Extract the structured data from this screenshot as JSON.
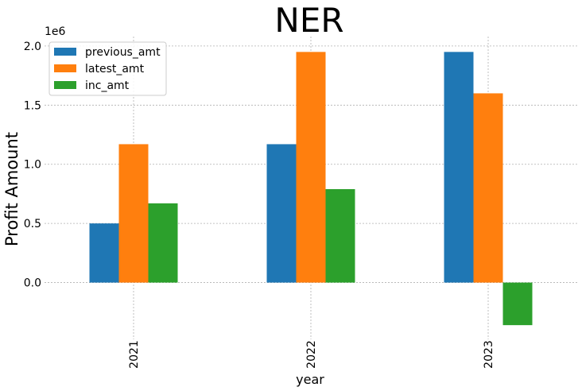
{
  "chart_data": {
    "type": "bar",
    "title": "NER",
    "xlabel": "year",
    "ylabel": "Profit Amount",
    "y_offset_label": "1e6",
    "categories": [
      "2021",
      "2022",
      "2023"
    ],
    "series": [
      {
        "name": "previous_amt",
        "color": "#1f77b4",
        "values": [
          500000,
          1170000,
          1950000
        ]
      },
      {
        "name": "latest_amt",
        "color": "#ff7f0e",
        "values": [
          1170000,
          1950000,
          1600000
        ]
      },
      {
        "name": "inc_amt",
        "color": "#2ca02c",
        "values": [
          670000,
          790000,
          -360000
        ]
      }
    ],
    "ylim": [
      -480000,
      2080000
    ],
    "yticks": [
      0,
      500000,
      1000000,
      1500000,
      2000000
    ],
    "ytick_labels": [
      "0.0",
      "0.5",
      "1.0",
      "1.5",
      "2.0"
    ],
    "grid": true,
    "legend_position": "top-left"
  }
}
